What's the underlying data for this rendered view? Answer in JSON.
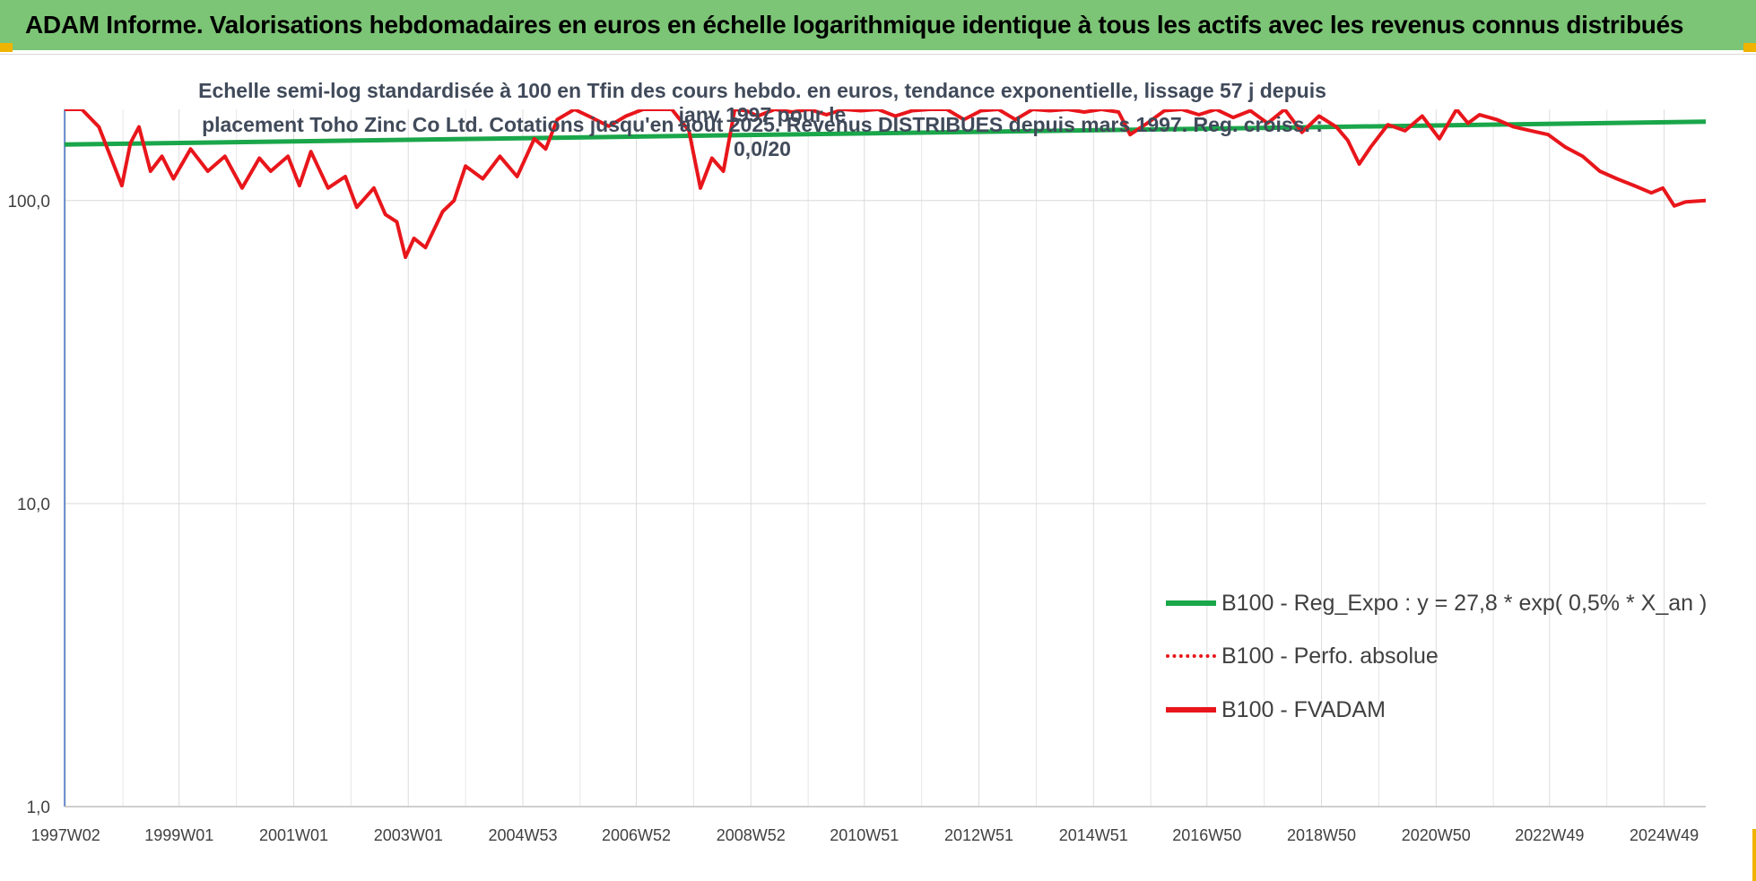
{
  "header": {
    "title": "ADAM Informe. Valorisations hebdomadaires en euros en échelle logarithmique identique à tous les actifs avec les revenus connus distribués"
  },
  "colors": {
    "title_bg": "#7cc576",
    "corner_accent": "#f0b400",
    "trend_line": "#1aa64a",
    "fvadam_line": "#e8161b",
    "grid": "#d9d9d9"
  },
  "chart_data": {
    "type": "line",
    "subtitle_line1": "Echelle semi-log standardisée à 100 en Tfin des cours hebdo. en euros, tendance exponentielle, lissage 57 j depuis janv 1997 pour le",
    "subtitle_line2": "placement Toho Zinc Co Ltd. Cotations jusqu'en août 2025. Revenus DISTRIBUES depuis mars 1997. Reg. croiss. : 0,0/20",
    "y_scale": "log",
    "ylim": [
      1,
      200
    ],
    "y_ticks": [
      "1,0",
      "10,0",
      "100,0"
    ],
    "x_ticks": [
      "1997W02",
      "1999W01",
      "2001W01",
      "2003W01",
      "2004W53",
      "2006W52",
      "2008W52",
      "2010W51",
      "2012W51",
      "2014W51",
      "2016W50",
      "2018W50",
      "2020W50",
      "2022W49",
      "2024W49"
    ],
    "x_range_years": [
      1997.0,
      2025.65
    ],
    "grid": "vertical and horizontal",
    "legend_position": "bottom-right",
    "legend": [
      {
        "label": "B100 - Reg_Expo : y = 27,8 * exp( 0,5% *  X_an )",
        "style": "solid-green"
      },
      {
        "label": "B100 - Perfo. absolue",
        "style": "dotted-red"
      },
      {
        "label": "B100 - FVADAM",
        "style": "solid-red"
      }
    ],
    "series": [
      {
        "name": "B100 - Reg_Expo : y = 27,8 * exp( 0,5% *  X_an )",
        "x": [
          1997.0,
          2025.65
        ],
        "values": [
          153,
          182
        ]
      },
      {
        "name": "B100 - FVADAM",
        "x": [
          1997.0,
          1997.3,
          1997.6,
          1997.8,
          1998.0,
          1998.15,
          1998.3,
          1998.5,
          1998.7,
          1998.9,
          1999.2,
          1999.5,
          1999.8,
          2000.1,
          2000.4,
          2000.6,
          2000.9,
          2001.1,
          2001.3,
          2001.6,
          2001.9,
          2002.1,
          2002.4,
          2002.6,
          2002.8,
          2002.95,
          2003.1,
          2003.3,
          2003.6,
          2003.8,
          2004.0,
          2004.3,
          2004.6,
          2004.9,
          2005.2,
          2005.4,
          2005.6,
          2005.9,
          2006.2,
          2006.5,
          2006.8,
          2007.1,
          2007.4,
          2007.6,
          2007.9,
          2008.1,
          2008.3,
          2008.5,
          2008.7,
          2008.9,
          2009.1,
          2009.4,
          2009.7,
          2010.0,
          2010.3,
          2010.6,
          2010.9,
          2011.2,
          2011.5,
          2011.8,
          2012.1,
          2012.4,
          2012.7,
          2013.0,
          2013.3,
          2013.6,
          2013.9,
          2014.2,
          2014.5,
          2014.8,
          2015.1,
          2015.4,
          2015.6,
          2015.9,
          2016.2,
          2016.5,
          2016.8,
          2017.1,
          2017.4,
          2017.7,
          2018.0,
          2018.3,
          2018.6,
          2018.9,
          2019.2,
          2019.4,
          2019.6,
          2019.8,
          2020.1,
          2020.4,
          2020.7,
          2021.0,
          2021.3,
          2021.5,
          2021.7,
          2022.0,
          2022.3,
          2022.6,
          2022.9,
          2023.2,
          2023.5,
          2023.8,
          2024.1,
          2024.4,
          2024.7,
          2024.9,
          2025.1,
          2025.3,
          2025.65
        ],
        "values": [
          205,
          210,
          175,
          140,
          112,
          155,
          175,
          125,
          140,
          118,
          148,
          125,
          140,
          110,
          138,
          125,
          140,
          112,
          145,
          110,
          120,
          95,
          110,
          90,
          85,
          65,
          75,
          70,
          92,
          100,
          130,
          118,
          140,
          120,
          160,
          148,
          185,
          200,
          188,
          176,
          190,
          202,
          205,
          200,
          170,
          110,
          138,
          125,
          205,
          198,
          190,
          204,
          196,
          200,
          192,
          205,
          198,
          202,
          190,
          198,
          203,
          200,
          185,
          198,
          205,
          185,
          200,
          198,
          202,
          196,
          205,
          196,
          165,
          180,
          198,
          205,
          192,
          200,
          188,
          198,
          180,
          202,
          168,
          190,
          175,
          158,
          132,
          150,
          178,
          170,
          190,
          160,
          200,
          180,
          192,
          185,
          175,
          170,
          165,
          150,
          140,
          125,
          118,
          112,
          106,
          110,
          96,
          99,
          100
        ]
      }
    ]
  }
}
